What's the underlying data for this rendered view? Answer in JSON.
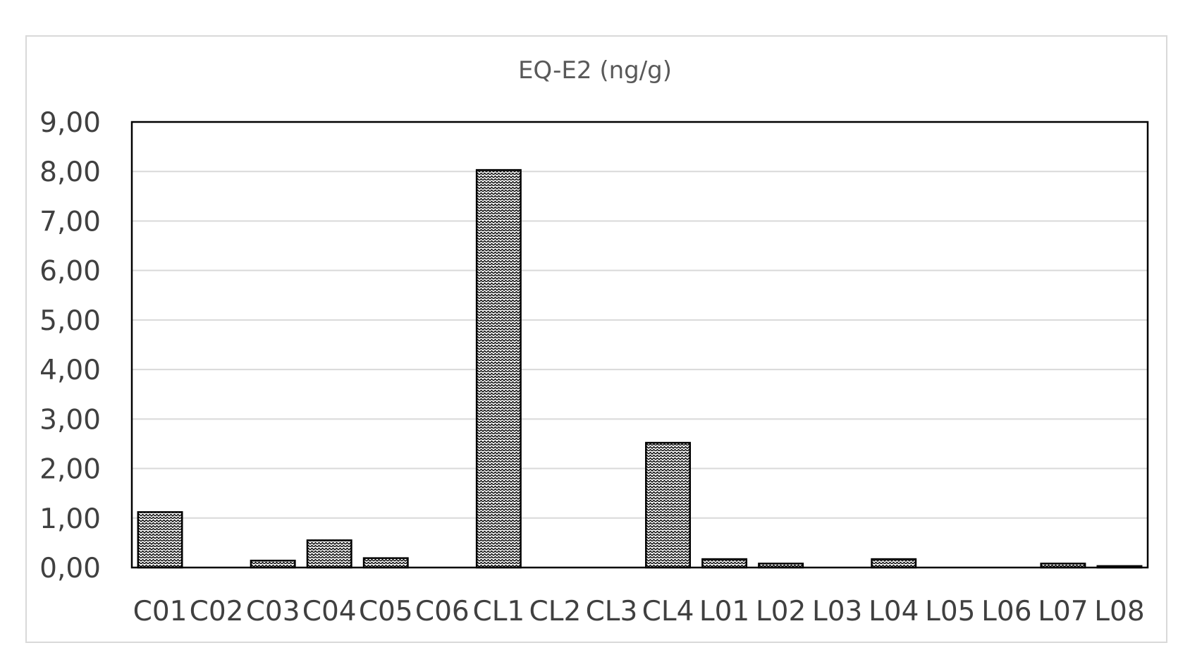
{
  "chart_data": {
    "type": "bar",
    "title": "EQ-E2 (ng/g)",
    "xlabel": "",
    "ylabel": "",
    "ylim": [
      0,
      9
    ],
    "y_ticks": [
      "0,00",
      "1,00",
      "2,00",
      "3,00",
      "4,00",
      "5,00",
      "6,00",
      "7,00",
      "8,00",
      "9,00"
    ],
    "grid": true,
    "legend": "none",
    "categories": [
      "C01",
      "C02",
      "C03",
      "C04",
      "C05",
      "C06",
      "CL1",
      "CL2",
      "CL3",
      "CL4",
      "L01",
      "L02",
      "L03",
      "L04",
      "L05",
      "L06",
      "L07",
      "L08"
    ],
    "values": [
      1.12,
      0,
      0.14,
      0.55,
      0.19,
      0,
      8.03,
      0,
      0,
      2.52,
      0.17,
      0.08,
      0,
      0.17,
      0,
      0,
      0.08,
      0.03
    ],
    "colors": {
      "bar_fill_pattern": "zigzag-hatch",
      "bar_stroke": "#000000",
      "grid": "#d9d9d9",
      "plot_border": "#000000",
      "text": "#404040"
    }
  }
}
